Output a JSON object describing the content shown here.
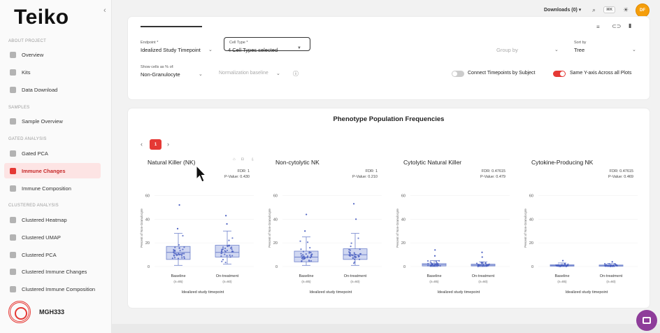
{
  "app": {
    "logo": "Teiko",
    "project": "MGH333",
    "collapse_icon": "chevron-left-icon"
  },
  "topbar": {
    "downloads_label": "Downloads (0)",
    "kbd_shortcut": "⌘K",
    "avatar_initials": "DF"
  },
  "sidebar": {
    "sections": [
      {
        "label": "ABOUT PROJECT",
        "items": [
          {
            "label": "Overview",
            "icon": "overview-icon",
            "active": false
          },
          {
            "label": "Kits",
            "icon": "kits-icon",
            "active": false
          },
          {
            "label": "Data Download",
            "icon": "download-icon",
            "active": false
          }
        ]
      },
      {
        "label": "SAMPLES",
        "items": [
          {
            "label": "Sample Overview",
            "icon": "samples-icon",
            "active": false
          }
        ]
      },
      {
        "label": "GATED ANALYSIS",
        "items": [
          {
            "label": "Gated PCA",
            "icon": "pca-icon",
            "active": false
          },
          {
            "label": "Immune Changes",
            "icon": "bar-chart-icon",
            "active": true
          },
          {
            "label": "Immune Composition",
            "icon": "composition-icon",
            "active": false
          }
        ]
      },
      {
        "label": "CLUSTERED ANALYSIS",
        "items": [
          {
            "label": "Clustered Heatmap",
            "icon": "heatmap-icon",
            "active": false
          },
          {
            "label": "Clustered UMAP",
            "icon": "umap-icon",
            "active": false
          },
          {
            "label": "Clustered PCA",
            "icon": "pca-icon",
            "active": false
          },
          {
            "label": "Clustered Immune Changes",
            "icon": "line-chart-icon",
            "active": false
          },
          {
            "label": "Clustered Immune Composition",
            "icon": "composition-icon",
            "active": false
          }
        ]
      }
    ]
  },
  "filters": {
    "endpoint_label": "Endpoint *",
    "endpoint_value": "Idealized Study Timepoint",
    "cell_type_label": "Cell Type *",
    "cell_type_value": "4 Cell Types selected",
    "group_by_placeholder": "Group by",
    "sort_by_label": "Sort by",
    "sort_by_value": "Tree",
    "show_cells_label": "Show cells as % of:",
    "show_cells_value": "Non-Granulocyte",
    "normalization_placeholder": "Normalization baseline",
    "connect_label": "Connect Timepoints by Subject",
    "connect_on": false,
    "same_y_label": "Same Y-axis Across all Plots",
    "same_y_on": true
  },
  "panel": {
    "title": "Phenotype Population Frequencies",
    "current_page": "1"
  },
  "chart_data": [
    {
      "type": "box",
      "title": "Natural Killer (NK)",
      "fdr": "FDR: 1",
      "pvalue": "P-Value: 0.430",
      "ylabel": "Percent of Non-Granulocyte",
      "xlabel": "Idealized study timepoint",
      "yticks": [
        "0",
        "20",
        "40",
        "60"
      ],
      "ylim": [
        0,
        65
      ],
      "categories": [
        {
          "name": "Baseline",
          "n": "(n=85)",
          "q1": 6,
          "median": 12,
          "q3": 17,
          "min": 1,
          "max": 28,
          "outliers": [
            52,
            32
          ]
        },
        {
          "name": "On-treatment",
          "n": "(n=60)",
          "q1": 8,
          "median": 12,
          "q3": 18,
          "min": 2,
          "max": 30,
          "outliers": [
            43,
            36
          ]
        }
      ]
    },
    {
      "type": "box",
      "title": "Non-cytolytic NK",
      "fdr": "FDR: 1",
      "pvalue": "P-Value: 0.210",
      "ylabel": "Percent of Non-Granulocyte",
      "xlabel": "Idealized study timepoint",
      "yticks": [
        "0",
        "20",
        "40",
        "60"
      ],
      "ylim": [
        0,
        65
      ],
      "categories": [
        {
          "name": "Baseline",
          "n": "(n=85)",
          "q1": 4,
          "median": 8,
          "q3": 13,
          "min": 1,
          "max": 25,
          "outliers": [
            44,
            30
          ]
        },
        {
          "name": "On-treatment",
          "n": "(n=60)",
          "q1": 6,
          "median": 10,
          "q3": 15,
          "min": 1,
          "max": 28,
          "outliers": [
            53,
            40
          ]
        }
      ]
    },
    {
      "type": "box",
      "title": "Cytolytic Natural Killer",
      "fdr": "FDR: 0.47615",
      "pvalue": "P-Value: 0.479",
      "ylabel": "Percent of Non-Granulocyte",
      "xlabel": "Idealized study timepoint",
      "yticks": [
        "0",
        "20",
        "40",
        "60"
      ],
      "ylim": [
        0,
        65
      ],
      "categories": [
        {
          "name": "Baseline",
          "n": "(n=85)",
          "q1": 0.5,
          "median": 1.5,
          "q3": 2.5,
          "min": 0,
          "max": 5,
          "outliers": [
            14,
            9
          ]
        },
        {
          "name": "On-treatment",
          "n": "(n=60)",
          "q1": 0.5,
          "median": 1.2,
          "q3": 2,
          "min": 0,
          "max": 4,
          "outliers": [
            12,
            8
          ]
        }
      ]
    },
    {
      "type": "box",
      "title": "Cytokine-Producing NK",
      "fdr": "FDR: 0.47615",
      "pvalue": "P-Value: 0.469",
      "ylabel": "Percent of Non-Granulocyte",
      "xlabel": "Idealized study timepoint",
      "yticks": [
        "0",
        "20",
        "40",
        "60"
      ],
      "ylim": [
        0,
        65
      ],
      "categories": [
        {
          "name": "Baseline",
          "n": "(n=85)",
          "q1": 0.3,
          "median": 0.8,
          "q3": 1.5,
          "min": 0,
          "max": 3,
          "outliers": [
            5
          ]
        },
        {
          "name": "On-treatment",
          "n": "(n=60)",
          "q1": 0.3,
          "median": 0.7,
          "q3": 1.3,
          "min": 0,
          "max": 2.5,
          "outliers": [
            4
          ]
        }
      ]
    }
  ],
  "colors": {
    "accent": "#e53935",
    "box_fill": "#aab6e6",
    "box_stroke": "#6f82cc",
    "point": "#4a5fc1"
  }
}
